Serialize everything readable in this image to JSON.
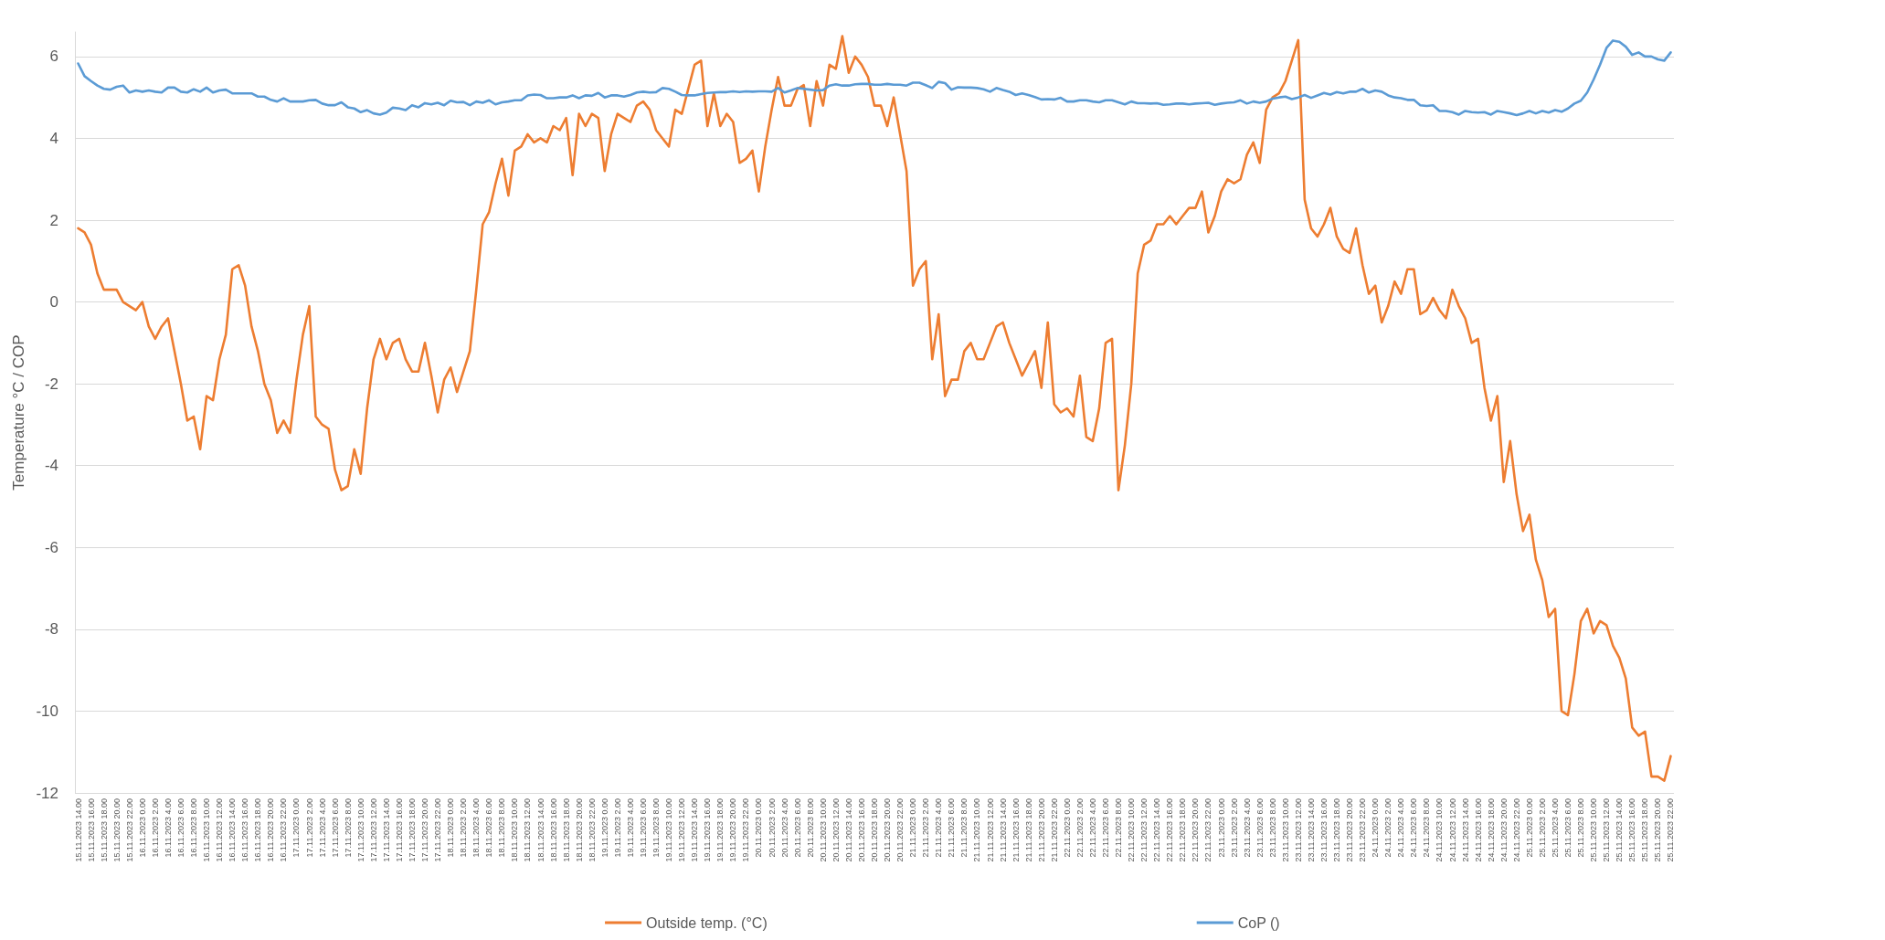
{
  "chart_data": {
    "type": "line",
    "ylabel": "Temperature °C / COP",
    "categories": [
      "15.11.2023 14.00",
      null,
      "15.11.2023 16.00",
      null,
      "15.11.2023 18.00",
      null,
      "15.11.2023 20.00",
      null,
      "15.11.2023 22.00",
      null,
      "16.11.2023 0.00",
      null,
      "16.11.2023 2.00",
      null,
      "16.11.2023 4.00",
      null,
      "16.11.2023 6.00",
      null,
      "16.11.2023 8.00",
      null,
      "16.11.2023 10.00",
      null,
      "16.11.2023 12.00",
      null,
      "16.11.2023 14.00",
      null,
      "16.11.2023 16.00",
      null,
      "16.11.2023 18.00",
      null,
      "16.11.2023 20.00",
      null,
      "16.11.2023 22.00",
      null,
      "17.11.2023 0.00",
      null,
      "17.11.2023 2.00",
      null,
      "17.11.2023 4.00",
      null,
      "17.11.2023 6.00",
      null,
      "17.11.2023 8.00",
      null,
      "17.11.2023 10.00",
      null,
      "17.11.2023 12.00",
      null,
      "17.11.2023 14.00",
      null,
      "17.11.2023 16.00",
      null,
      "17.11.2023 18.00",
      null,
      "17.11.2023 20.00",
      null,
      "17.11.2023 22.00",
      null,
      "18.11.2023 0.00",
      null,
      "18.11.2023 2.00",
      null,
      "18.11.2023 4.00",
      null,
      "18.11.2023 6.00",
      null,
      "18.11.2023 8.00",
      null,
      "18.11.2023 10.00",
      null,
      "18.11.2023 12.00",
      null,
      "18.11.2023 14.00",
      null,
      "18.11.2023 16.00",
      null,
      "18.11.2023 18.00",
      null,
      "18.11.2023 20.00",
      null,
      "18.11.2023 22.00",
      null,
      "19.11.2023 0.00",
      null,
      "19.11.2023 2.00",
      null,
      "19.11.2023 4.00",
      null,
      "19.11.2023 6.00",
      null,
      "19.11.2023 8.00",
      null,
      "19.11.2023 10.00",
      null,
      "19.11.2023 12.00",
      null,
      "19.11.2023 14.00",
      null,
      "19.11.2023 16.00",
      null,
      "19.11.2023 18.00",
      null,
      "19.11.2023 20.00",
      null,
      "19.11.2023 22.00",
      null,
      "20.11.2023 0.00",
      null,
      "20.11.2023 2.00",
      null,
      "20.11.2023 4.00",
      null,
      "20.11.2023 6.00",
      null,
      "20.11.2023 8.00",
      null,
      "20.11.2023 10.00",
      null,
      "20.11.2023 12.00",
      null,
      "20.11.2023 14.00",
      null,
      "20.11.2023 16.00",
      null,
      "20.11.2023 18.00",
      null,
      "20.11.2023 20.00",
      null,
      "20.11.2023 22.00",
      null,
      "21.11.2023 0.00",
      null,
      "21.11.2023 2.00",
      null,
      "21.11.2023 4.00",
      null,
      "21.11.2023 6.00",
      null,
      "21.11.2023 8.00",
      null,
      "21.11.2023 10.00",
      null,
      "21.11.2023 12.00",
      null,
      "21.11.2023 14.00",
      null,
      "21.11.2023 16.00",
      null,
      "21.11.2023 18.00",
      null,
      "21.11.2023 20.00",
      null,
      "21.11.2023 22.00",
      null,
      "22.11.2023 0.00",
      null,
      "22.11.2023 2.00",
      null,
      "22.11.2023 4.00",
      null,
      "22.11.2023 6.00",
      null,
      "22.11.2023 8.00",
      null,
      "22.11.2023 10.00",
      null,
      "22.11.2023 12.00",
      null,
      "22.11.2023 14.00",
      null,
      "22.11.2023 16.00",
      null,
      "22.11.2023 18.00",
      null,
      "22.11.2023 20.00",
      null,
      "22.11.2023 22.00",
      null,
      "23.11.2023 0.00",
      null,
      "23.11.2023 2.00",
      null,
      "23.11.2023 4.00",
      null,
      "23.11.2023 6.00",
      null,
      "23.11.2023 8.00",
      null,
      "23.11.2023 10.00",
      null,
      "23.11.2023 12.00",
      null,
      "23.11.2023 14.00",
      null,
      "23.11.2023 16.00",
      null,
      "23.11.2023 18.00",
      null,
      "23.11.2023 20.00",
      null,
      "23.11.2023 22.00",
      null,
      "24.11.2023 0.00",
      null,
      "24.11.2023 2.00",
      null,
      "24.11.2023 4.00",
      null,
      "24.11.2023 6.00",
      null,
      "24.11.2023 8.00",
      null,
      "24.11.2023 10.00",
      null,
      "24.11.2023 12.00",
      null,
      "24.11.2023 14.00",
      null,
      "24.11.2023 16.00",
      null,
      "24.11.2023 18.00",
      null,
      "24.11.2023 20.00",
      null,
      "24.11.2023 22.00",
      null,
      "25.11.2023 0.00",
      null,
      "25.11.2023 2.00",
      null,
      "25.11.2023 4.00",
      null,
      "25.11.2023 6.00",
      null,
      "25.11.2023 8.00",
      null,
      "25.11.2023 10.00",
      null,
      "25.11.2023 12.00",
      null,
      "25.11.2023 14.00",
      null,
      "25.11.2023 16.00",
      null,
      "25.11.2023 18.00",
      null,
      "25.11.2023 20.00",
      null,
      "25.11.2023 22.00"
    ],
    "series": [
      {
        "name": "Outside temp. (°C)",
        "color": "#ed7d31",
        "values": [
          1.8,
          1.7,
          1.4,
          0.7,
          0.3,
          0.3,
          0.3,
          0,
          -0.1,
          -0.2,
          0,
          -0.6,
          -0.9,
          -0.6,
          -0.4,
          -1.2,
          -2,
          -2.9,
          -2.8,
          -3.6,
          -2.3,
          -2.4,
          -1.4,
          -0.8,
          0.8,
          0.9,
          0.4,
          -0.6,
          -1.2,
          -2,
          -2.4,
          -3.2,
          -2.9,
          -3.2,
          -1.9,
          -0.8,
          -0.1,
          -2.8,
          -3,
          -3.1,
          -4.1,
          -4.6,
          -4.5,
          -3.6,
          -4.2,
          -2.6,
          -1.4,
          -0.9,
          -1.4,
          -1,
          -0.9,
          -1.4,
          -1.7,
          -1.7,
          -1,
          -1.8,
          -2.7,
          -1.9,
          -1.6,
          -2.2,
          -1.7,
          -1.2,
          0.3,
          1.9,
          2.2,
          2.9,
          3.5,
          2.6,
          3.7,
          3.8,
          4.1,
          3.9,
          4,
          3.9,
          4.3,
          4.2,
          4.5,
          3.1,
          4.6,
          4.3,
          4.6,
          4.5,
          3.2,
          4.1,
          4.6,
          4.5,
          4.4,
          4.8,
          4.9,
          4.7,
          4.2,
          4,
          3.8,
          4.7,
          4.6,
          5.2,
          5.8,
          5.9,
          4.3,
          5.1,
          4.3,
          4.6,
          4.4,
          3.4,
          3.5,
          3.7,
          2.7,
          3.8,
          4.7,
          5.5,
          4.8,
          4.8,
          5.2,
          5.3,
          4.3,
          5.4,
          4.8,
          5.8,
          5.7,
          6.5,
          5.6,
          6,
          5.8,
          5.5,
          4.8,
          4.8,
          4.3,
          5,
          4.1,
          3.2,
          0.4,
          0.8,
          1,
          -1.4,
          -0.3,
          -2.3,
          -1.9,
          -1.9,
          -1.2,
          -1,
          -1.4,
          -1.4,
          -1,
          -0.6,
          -0.5,
          -1,
          -1.4,
          -1.8,
          -1.5,
          -1.2,
          -2.1,
          -0.5,
          -2.5,
          -2.7,
          -2.6,
          -2.8,
          -1.8,
          -3.3,
          -3.4,
          -2.6,
          -1,
          -0.9,
          -4.6,
          -3.5,
          -2,
          0.7,
          1.4,
          1.5,
          1.9,
          1.9,
          2.1,
          1.9,
          2.1,
          2.3,
          2.3,
          2.7,
          1.7,
          2.1,
          2.7,
          3,
          2.9,
          3,
          3.6,
          3.9,
          3.4,
          4.7,
          5,
          5.1,
          5.4,
          5.9,
          6.4,
          2.5,
          1.8,
          1.6,
          1.9,
          2.3,
          1.6,
          1.3,
          1.2,
          1.8,
          0.9,
          0.2,
          0.4,
          -0.5,
          -0.1,
          0.5,
          0.2,
          0.8,
          0.8,
          -0.3,
          -0.2,
          0.1,
          -0.2,
          -0.4,
          0.3,
          -0.1,
          -0.4,
          -1,
          -0.9,
          -2.1,
          -2.9,
          -2.3,
          -4.4,
          -3.4,
          -4.7,
          -5.6,
          -5.2,
          -6.3,
          -6.8,
          -7.7,
          -7.5,
          -10,
          -10.1,
          -9.1,
          -7.8,
          -7.5,
          -8.1,
          -7.8,
          -7.9,
          -8.4,
          -8.7,
          -9.2,
          -10.4,
          -10.6,
          -10.5,
          -11.6,
          -11.6,
          -11.7,
          -11.1
        ]
      },
      {
        "name": "CoP ()",
        "color": "#5b9bd5",
        "values": [
          5.83,
          5.52,
          5.4,
          5.29,
          5.21,
          5.19,
          5.26,
          5.29,
          5.12,
          5.17,
          5.14,
          5.17,
          5.14,
          5.12,
          5.24,
          5.24,
          5.14,
          5.12,
          5.2,
          5.14,
          5.24,
          5.12,
          5.17,
          5.19,
          5.1,
          5.1,
          5.1,
          5.1,
          5.02,
          5.02,
          4.94,
          4.9,
          4.98,
          4.9,
          4.9,
          4.9,
          4.93,
          4.94,
          4.85,
          4.81,
          4.81,
          4.88,
          4.76,
          4.73,
          4.64,
          4.69,
          4.61,
          4.58,
          4.63,
          4.75,
          4.73,
          4.69,
          4.81,
          4.76,
          4.86,
          4.83,
          4.87,
          4.81,
          4.92,
          4.88,
          4.89,
          4.81,
          4.9,
          4.87,
          4.93,
          4.83,
          4.88,
          4.9,
          4.93,
          4.93,
          5.05,
          5.07,
          5.06,
          4.98,
          4.98,
          5,
          5,
          5.05,
          4.98,
          5.05,
          5.04,
          5.11,
          5,
          5.05,
          5.05,
          5.02,
          5.06,
          5.12,
          5.14,
          5.12,
          5.13,
          5.23,
          5.21,
          5.14,
          5.06,
          5.05,
          5.05,
          5.08,
          5.11,
          5.12,
          5.13,
          5.13,
          5.15,
          5.13,
          5.15,
          5.14,
          5.15,
          5.15,
          5.14,
          5.23,
          5.12,
          5.17,
          5.23,
          5.21,
          5.19,
          5.17,
          5.18,
          5.29,
          5.32,
          5.29,
          5.29,
          5.32,
          5.33,
          5.33,
          5.31,
          5.31,
          5.33,
          5.31,
          5.31,
          5.29,
          5.36,
          5.36,
          5.3,
          5.23,
          5.38,
          5.35,
          5.19,
          5.25,
          5.24,
          5.24,
          5.23,
          5.2,
          5.14,
          5.23,
          5.18,
          5.14,
          5.06,
          5.1,
          5.06,
          5.01,
          4.95,
          4.96,
          4.95,
          4.99,
          4.9,
          4.9,
          4.93,
          4.93,
          4.9,
          4.88,
          4.93,
          4.93,
          4.88,
          4.83,
          4.9,
          4.86,
          4.86,
          4.85,
          4.86,
          4.82,
          4.83,
          4.85,
          4.85,
          4.83,
          4.85,
          4.86,
          4.87,
          4.82,
          4.85,
          4.87,
          4.88,
          4.93,
          4.85,
          4.9,
          4.87,
          4.9,
          4.97,
          5,
          5.02,
          4.96,
          5,
          5.06,
          4.99,
          5.05,
          5.11,
          5.07,
          5.13,
          5.1,
          5.14,
          5.14,
          5.21,
          5.12,
          5.17,
          5.14,
          5.05,
          5,
          4.98,
          4.94,
          4.94,
          4.81,
          4.79,
          4.81,
          4.67,
          4.67,
          4.64,
          4.58,
          4.67,
          4.64,
          4.63,
          4.64,
          4.58,
          4.67,
          4.64,
          4.61,
          4.57,
          4.61,
          4.67,
          4.61,
          4.67,
          4.63,
          4.69,
          4.65,
          4.73,
          4.85,
          4.92,
          5.12,
          5.44,
          5.8,
          6.21,
          6.39,
          6.36,
          6.24,
          6.04,
          6.1,
          6,
          6,
          5.93,
          5.9,
          6.1
        ]
      }
    ],
    "ylim": [
      -12,
      6.6
    ],
    "yticks": [
      -12,
      -10,
      -8,
      -6,
      -4,
      -2,
      0,
      2,
      4,
      6
    ],
    "grid": "y",
    "legend": "bottom",
    "marker": "none",
    "line_style": "solid"
  }
}
